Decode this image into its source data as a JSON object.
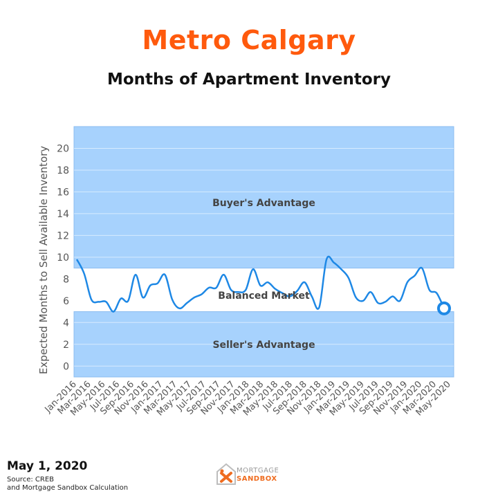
{
  "header": {
    "title": "Metro Calgary",
    "subtitle": "Months of Apartment Inventory",
    "title_color": "#ff5a0d"
  },
  "colors": {
    "band": "#a7d2fd",
    "band_edge": "#8bbcf0",
    "line": "#1e88e5",
    "label": "#444444",
    "tick": "#555555"
  },
  "chart_data": {
    "type": "line",
    "title": "Months of Apartment Inventory",
    "ylabel": "Expected Months to Sell Available Inventory",
    "xlabel": "",
    "ylim": [
      -1,
      22
    ],
    "yticks": [
      0,
      2,
      4,
      6,
      8,
      10,
      12,
      14,
      16,
      18,
      20
    ],
    "grid": true,
    "x_tick_labels": [
      "Jan-2016",
      "Mar-2016",
      "May-2016",
      "Jul-2016",
      "Sep-2016",
      "Nov-2016",
      "Jan-2017",
      "Mar-2017",
      "May-2017",
      "Jul-2017",
      "Sep-2017",
      "Nov-2017",
      "Jan-2018",
      "Mar-2018",
      "May-2018",
      "Jul-2018",
      "Sep-2018",
      "Nov-2018",
      "Jan-2019",
      "Mar-2019",
      "May-2019",
      "Jul-2019",
      "Sep-2019",
      "Nov-2019",
      "Jan-2020",
      "Mar-2020",
      "May-2020"
    ],
    "bands": [
      {
        "label": "Buyer's Advantage",
        "from": 9,
        "to": 22
      },
      {
        "label": "Balanced Market",
        "from": 5,
        "to": 9,
        "transparent": true
      },
      {
        "label": "Seller's Advantage",
        "from": -1,
        "to": 5
      }
    ],
    "series": [
      {
        "values": [
          9.8,
          8.5,
          6.1,
          5.9,
          5.9,
          5.0,
          6.2,
          6.0,
          8.4,
          6.3,
          7.4,
          7.6,
          8.4,
          6.1,
          5.3,
          5.8,
          6.3,
          6.6,
          7.2,
          7.2,
          8.4,
          7.0,
          6.8,
          7.0,
          8.9,
          7.4,
          7.7,
          7.1,
          6.7,
          6.4,
          6.9,
          7.7,
          6.4,
          5.4,
          9.8,
          9.5,
          8.9,
          8.1,
          6.3,
          6.0,
          6.8,
          5.8,
          5.9,
          6.4,
          6.0,
          7.7,
          8.3,
          9.0,
          7.0,
          6.7,
          5.3
        ],
        "highlight_last": true
      }
    ]
  },
  "footer": {
    "date": "May 1, 2020",
    "source_line1": "Source: CREB",
    "source_line2": "and Mortgage Sandbox Calculation",
    "logo_line1": "MORTGAGE",
    "logo_line2": "SANDBOX"
  }
}
